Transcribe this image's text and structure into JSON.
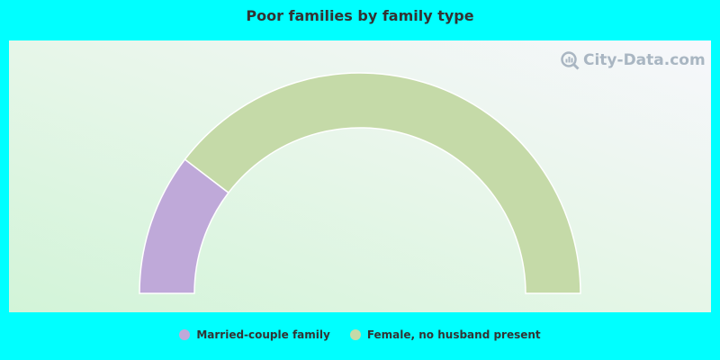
{
  "chart_data": {
    "type": "pie",
    "title": "Poor families by family type",
    "series": [
      {
        "name": "Married-couple family",
        "value": 20.8,
        "color": "#bfa9d9"
      },
      {
        "name": "Female, no husband present",
        "value": 79.2,
        "color": "#c5daa8"
      }
    ]
  },
  "watermark": "City-Data.com"
}
